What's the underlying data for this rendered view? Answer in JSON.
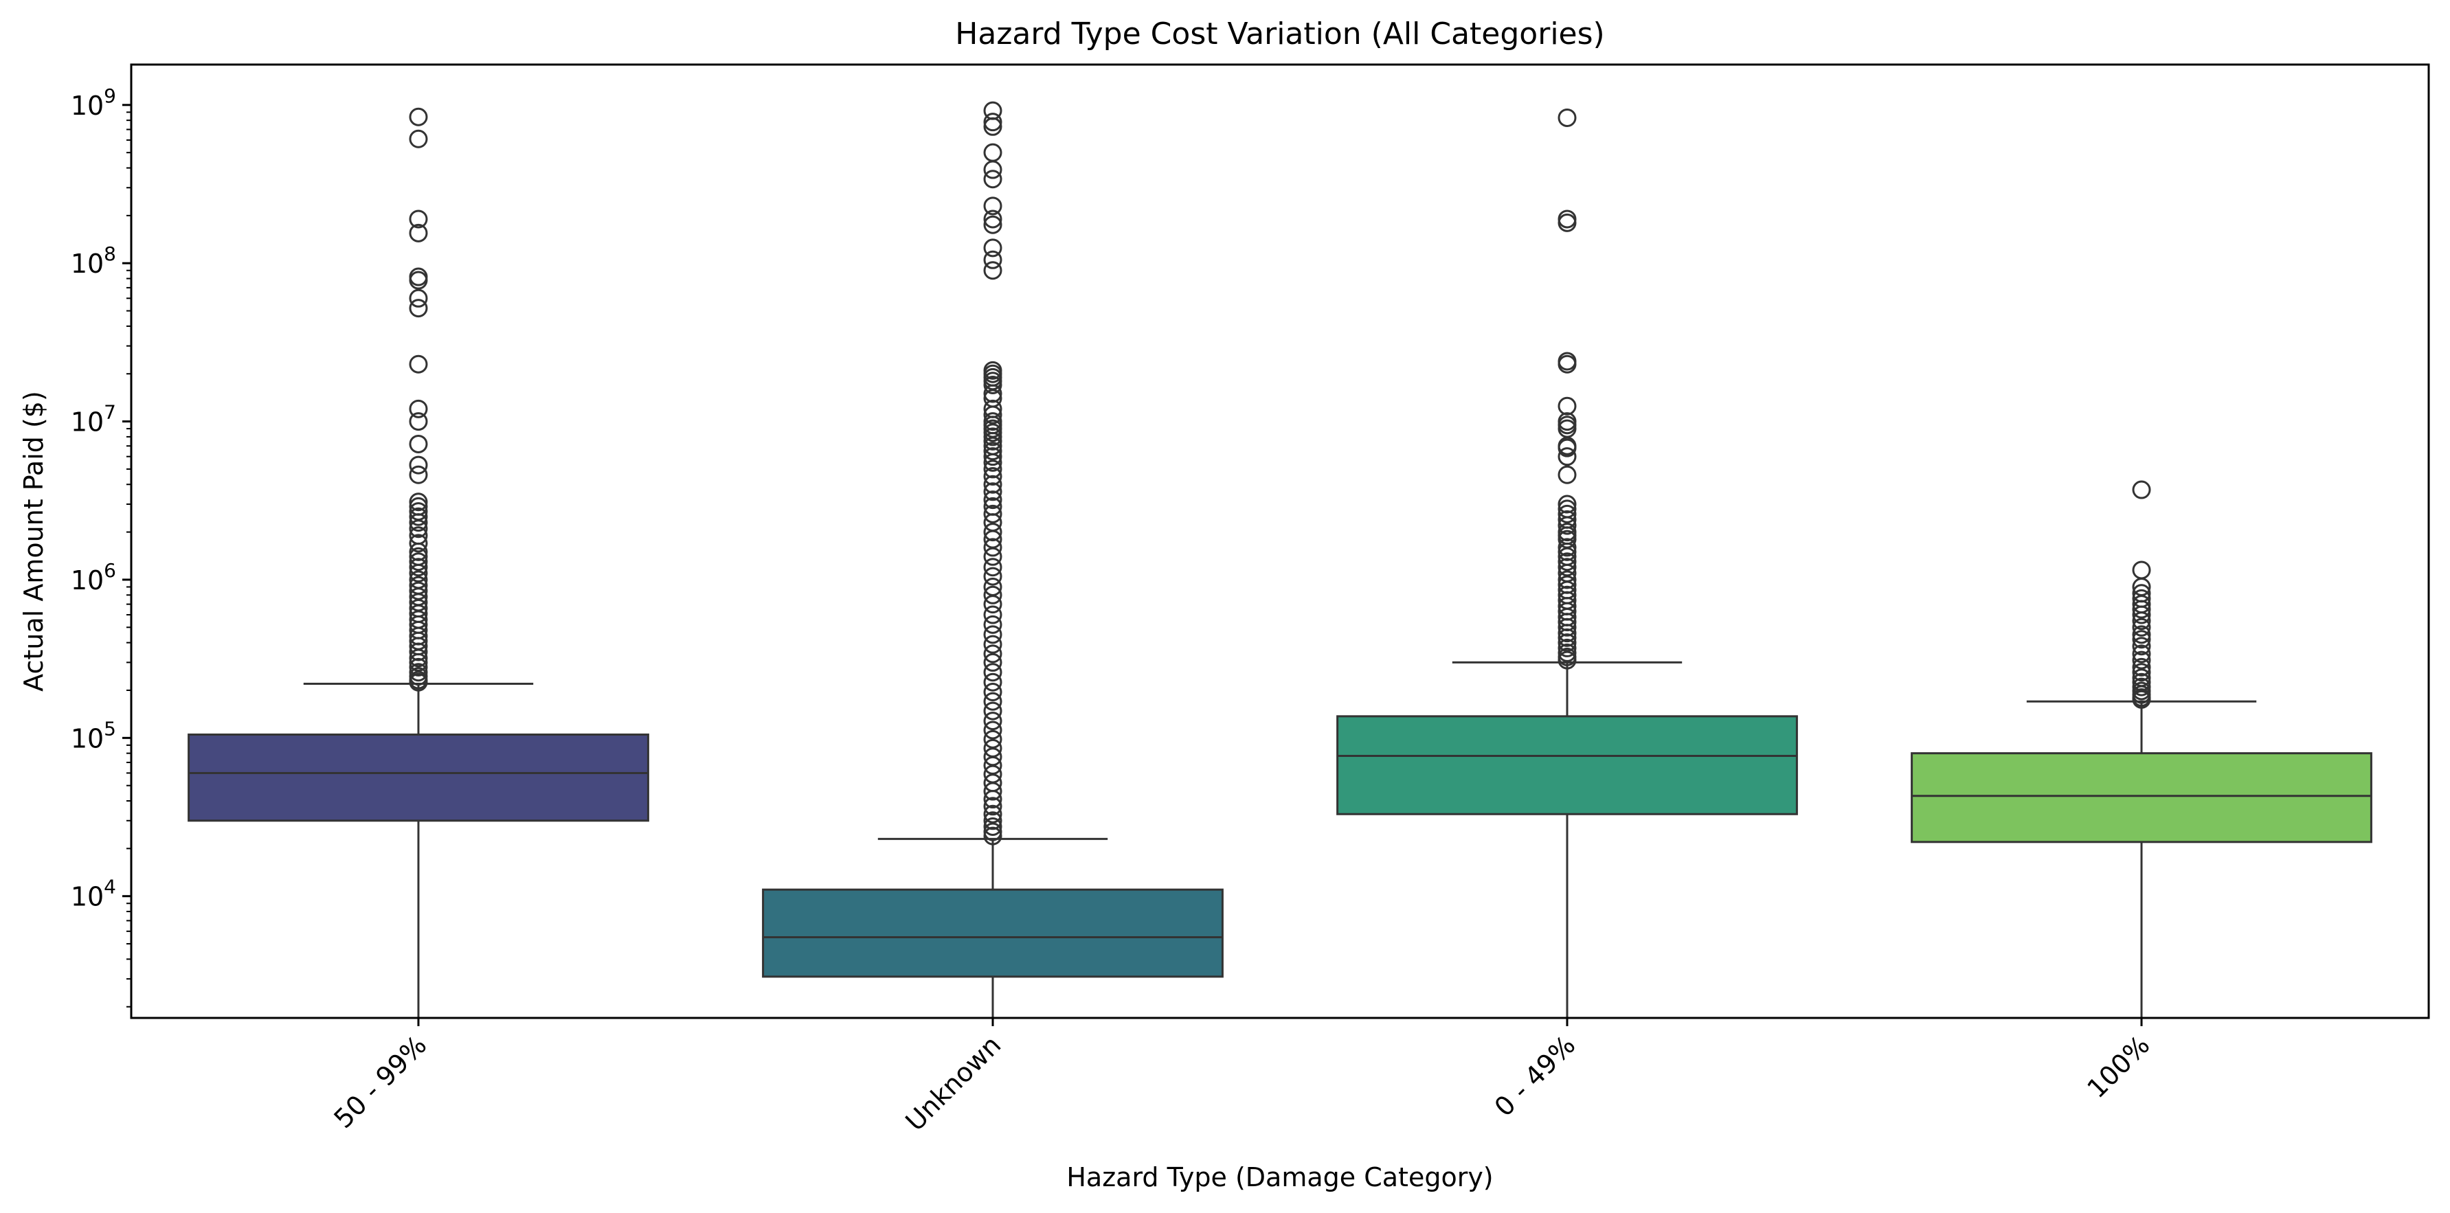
{
  "chart_data": {
    "type": "box",
    "title": "Hazard Type Cost Variation (All Categories)",
    "xlabel": "Hazard Type (Damage Category)",
    "ylabel": "Actual Amount Paid ($)",
    "yscale": "log",
    "ylim": [
      1700,
      1800000000
    ],
    "y_ticks": [
      {
        "base": "10",
        "exp": "4",
        "value": 10000
      },
      {
        "base": "10",
        "exp": "5",
        "value": 100000
      },
      {
        "base": "10",
        "exp": "6",
        "value": 1000000
      },
      {
        "base": "10",
        "exp": "7",
        "value": 10000000
      },
      {
        "base": "10",
        "exp": "8",
        "value": 100000000
      },
      {
        "base": "10",
        "exp": "9",
        "value": 1000000000
      }
    ],
    "categories": [
      "50 - 99%",
      "Unknown",
      "0 - 49%",
      "100%"
    ],
    "boxes": [
      {
        "category": "50 - 99%",
        "color": "#46497E",
        "whisker_low": 1700,
        "q1": 30000,
        "median": 60000,
        "q3": 105000,
        "whisker_high": 220000,
        "outliers": [
          840000000,
          610000000,
          190000000,
          155000000,
          82000000,
          78000000,
          60000000,
          52000000,
          23000000,
          12000000,
          10000000,
          7200000,
          5300000,
          4600000,
          3100000,
          2900000,
          2700000,
          2500000,
          2300000,
          2100000,
          1900000,
          1700000,
          1500000,
          1400000,
          1300000,
          1200000,
          1100000,
          1000000,
          920000,
          850000,
          780000,
          720000,
          660000,
          610000,
          560000,
          520000,
          480000,
          440000,
          410000,
          380000,
          350000,
          320000,
          300000,
          280000,
          260000,
          245000,
          232000,
          225000
        ]
      },
      {
        "category": "Unknown",
        "color": "#32707F",
        "whisker_low": 1700,
        "q1": 3100,
        "median": 5500,
        "q3": 11000,
        "whisker_high": 23000,
        "outliers": [
          920000000,
          780000000,
          730000000,
          500000000,
          390000000,
          340000000,
          230000000,
          190000000,
          175000000,
          125000000,
          105000000,
          90000000,
          21000000,
          20000000,
          19000000,
          18000000,
          17000000,
          15000000,
          14000000,
          12000000,
          11000000,
          10000000,
          9500000,
          9000000,
          8500000,
          8000000,
          7500000,
          7000000,
          6500000,
          6000000,
          5500000,
          5000000,
          4500000,
          4000000,
          3600000,
          3200000,
          2900000,
          2600000,
          2300000,
          2000000,
          1800000,
          1600000,
          1400000,
          1200000,
          1050000,
          900000,
          800000,
          700000,
          600000,
          520000,
          450000,
          390000,
          340000,
          300000,
          260000,
          225000,
          195000,
          170000,
          148000,
          128000,
          112000,
          98000,
          86000,
          76000,
          67000,
          59000,
          52000,
          46000,
          41000,
          37000,
          33000,
          30000,
          27500,
          25500,
          24000
        ]
      },
      {
        "category": "0 - 49%",
        "color": "#33977A",
        "whisker_low": 1700,
        "q1": 33000,
        "median": 77000,
        "q3": 137000,
        "whisker_high": 300000,
        "outliers": [
          830000000,
          190000000,
          180000000,
          24000000,
          23000000,
          12500000,
          10000000,
          9500000,
          9000000,
          7000000,
          6800000,
          6000000,
          4600000,
          3000000,
          2800000,
          2600000,
          2400000,
          2200000,
          2000000,
          1900000,
          1800000,
          1600000,
          1500000,
          1400000,
          1300000,
          1200000,
          1100000,
          1000000,
          930000,
          860000,
          800000,
          740000,
          680000,
          630000,
          580000,
          540000,
          500000,
          460000,
          430000,
          400000,
          370000,
          345000,
          325000,
          310000
        ]
      },
      {
        "category": "100%",
        "color": "#7DC35E",
        "whisker_low": 1700,
        "q1": 22000,
        "median": 43000,
        "q3": 80000,
        "whisker_high": 170000,
        "outliers": [
          3700000,
          1150000,
          900000,
          820000,
          760000,
          700000,
          650000,
          600000,
          550000,
          500000,
          450000,
          420000,
          380000,
          340000,
          310000,
          280000,
          260000,
          240000,
          225000,
          210000,
          198000,
          188000,
          180000,
          175000
        ]
      }
    ]
  }
}
